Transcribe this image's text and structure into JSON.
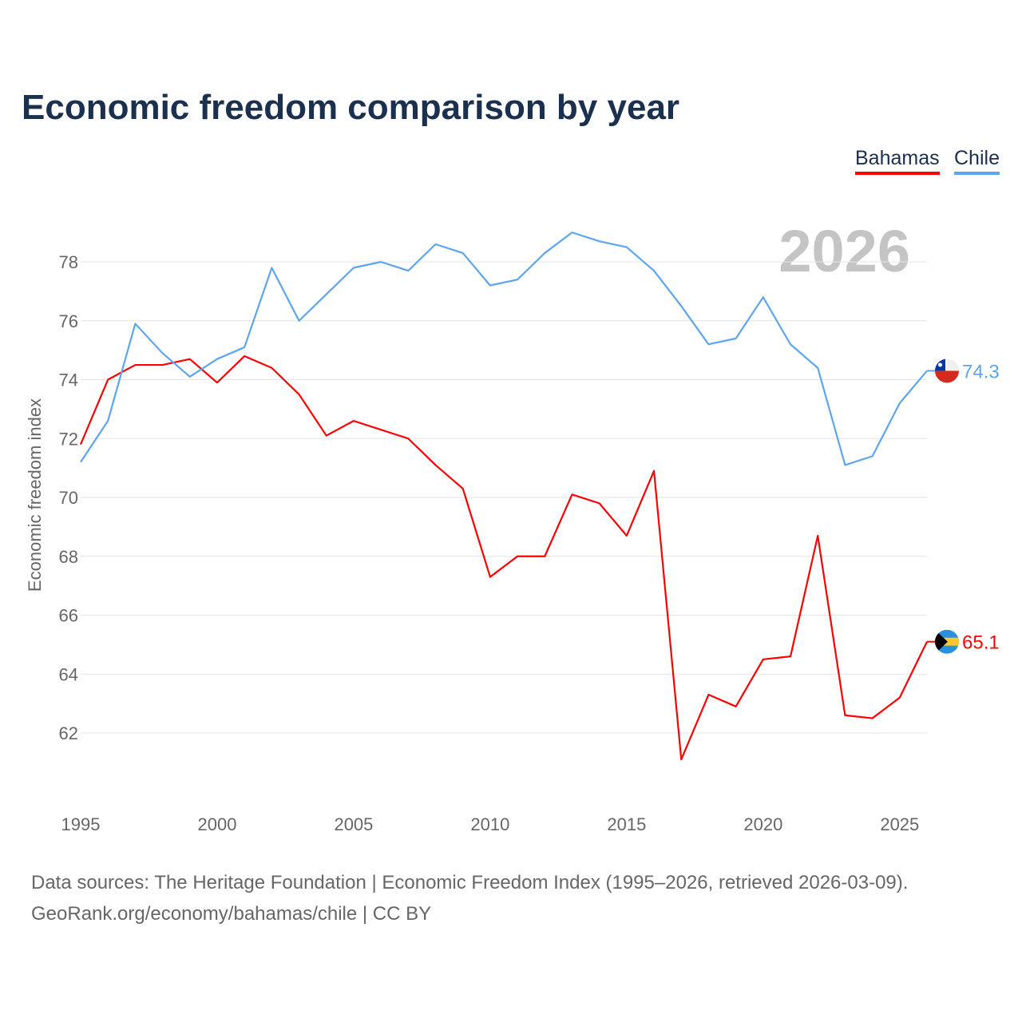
{
  "title": "Economic freedom comparison by year",
  "footer": {
    "line1": "Data sources: The Heritage Foundation | Economic Freedom Index (1995–2026, retrieved 2026-03-09).",
    "line2": "GeoRank.org/economy/bahamas/chile | CC BY"
  },
  "chart_data": {
    "type": "line",
    "title": "Economic freedom comparison by year",
    "xlabel": "",
    "ylabel": "Economic freedom index",
    "watermark_year": "2026",
    "x": [
      1995,
      1996,
      1997,
      1998,
      1999,
      2000,
      2001,
      2002,
      2003,
      2004,
      2005,
      2006,
      2007,
      2008,
      2009,
      2010,
      2011,
      2012,
      2013,
      2014,
      2015,
      2016,
      2017,
      2018,
      2019,
      2020,
      2021,
      2022,
      2023,
      2024,
      2025,
      2026
    ],
    "xticks": [
      "1995",
      "2000",
      "2005",
      "2010",
      "2015",
      "2020",
      "2025"
    ],
    "yticks": [
      "62",
      "64",
      "66",
      "68",
      "70",
      "72",
      "74",
      "76",
      "78"
    ],
    "xlim": [
      1995,
      2026
    ],
    "ylim": [
      59.5,
      80
    ],
    "grid": true,
    "legend": "top-right",
    "series": [
      {
        "name": "Bahamas",
        "color": "#ff0000",
        "end_label": "65.1",
        "values": [
          71.8,
          74.0,
          74.5,
          74.5,
          74.7,
          73.9,
          74.8,
          74.4,
          73.5,
          72.1,
          72.6,
          72.3,
          72.0,
          71.1,
          70.3,
          67.3,
          68.0,
          68.0,
          70.1,
          69.8,
          68.7,
          70.9,
          61.1,
          63.3,
          62.9,
          64.5,
          64.6,
          68.7,
          62.6,
          62.5,
          63.2,
          65.1
        ]
      },
      {
        "name": "Chile",
        "color": "#5da5ec",
        "end_label": "74.3",
        "values": [
          71.2,
          72.6,
          75.9,
          74.9,
          74.1,
          74.7,
          75.1,
          77.8,
          76.0,
          76.9,
          77.8,
          78.0,
          77.7,
          78.6,
          78.3,
          77.2,
          77.4,
          78.3,
          79.0,
          78.7,
          78.5,
          77.7,
          76.5,
          75.2,
          75.4,
          76.8,
          75.2,
          74.4,
          71.1,
          71.4,
          73.2,
          74.3
        ]
      }
    ]
  }
}
